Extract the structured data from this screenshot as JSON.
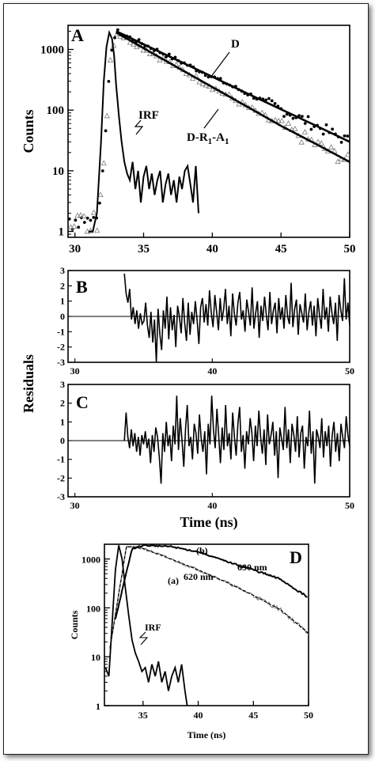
{
  "chart_data": [
    {
      "panel": "A",
      "type": "scatter",
      "ylabel": "Counts",
      "y_scale": "log",
      "xlim": [
        29.5,
        50
      ],
      "ylim": [
        0.8,
        2500
      ],
      "x_ticks": [
        30,
        35,
        40,
        45,
        50
      ],
      "y_ticks": [
        1,
        10,
        100,
        1000
      ],
      "y_tick_labels": [
        "1",
        "10",
        "100",
        "1000"
      ],
      "annotations": [
        "D",
        "IRF",
        "D-R",
        "1",
        "-A",
        "1"
      ],
      "series": [
        {
          "name": "IRF",
          "style": "line",
          "x": [
            31.0,
            31.3,
            31.6,
            31.9,
            32.1,
            32.3,
            32.5,
            32.7,
            32.85,
            33.0,
            33.2,
            33.4,
            33.6,
            33.8,
            34.0,
            34.2,
            34.4,
            34.6,
            34.8,
            35.0,
            35.2,
            35.4,
            35.6,
            35.8,
            36.0,
            36.2,
            36.4,
            36.6,
            36.8,
            37.0,
            37.2,
            37.4,
            37.6,
            37.8,
            38.0,
            38.2,
            38.4,
            38.6,
            38.8,
            39.0
          ],
          "y": [
            1,
            1,
            2,
            30,
            300,
            1100,
            1900,
            1500,
            800,
            260,
            80,
            30,
            14,
            9,
            7,
            14,
            5,
            10,
            3,
            8,
            12,
            5,
            9,
            4,
            7,
            10,
            3,
            6,
            9,
            4,
            7,
            3,
            8,
            5,
            10,
            12,
            6,
            3,
            12,
            2
          ]
        },
        {
          "name": "D",
          "style": "line",
          "x": [
            33.0,
            35,
            37.5,
            40,
            42.5,
            45,
            47.5,
            50
          ],
          "y": [
            2000,
            1220,
            660,
            355,
            190,
            103,
            56,
            30
          ]
        },
        {
          "name": "D-R1-A1",
          "style": "line",
          "x": [
            33.0,
            35,
            37.5,
            40,
            42.5,
            45,
            47.5,
            50
          ],
          "y": [
            1900,
            1050,
            500,
            240,
            115,
            55,
            28,
            14
          ]
        }
      ]
    },
    {
      "panel": "B",
      "type": "line",
      "xlim": [
        29.5,
        50
      ],
      "ylim": [
        -3,
        3
      ],
      "x_ticks": [
        30,
        40,
        50
      ],
      "y_ticks": [
        -3,
        -2,
        -1,
        0,
        1,
        2,
        3
      ],
      "series": [
        {
          "name": "",
          "x_start": 33.6,
          "x_end": 50,
          "values": [
            2.8,
            1.5,
            0.9,
            1.8,
            -0.2,
            0.6,
            -0.5,
            0.4,
            -0.8,
            0.2,
            -0.5,
            -0.3,
            0.9,
            -0.6,
            -1.4,
            0.3,
            -1.7,
            -0.2,
            -3.0,
            0.5,
            -1.2,
            -2.2,
            0.4,
            -0.8,
            1.3,
            -1.5,
            0.6,
            -0.9,
            0.1,
            -2.0,
            0.7,
            0.0,
            -1.1,
            1.2,
            -0.4,
            -1.6,
            0.9,
            -1.2,
            0.3,
            -0.5,
            1.0,
            -0.2,
            -1.8,
            0.6,
            1.2,
            -0.4,
            0.8,
            -0.6,
            1.7,
            0.2,
            -0.7,
            1.4,
            0.3,
            -0.9,
            1.2,
            -0.3,
            0.5,
            1.8,
            -0.5,
            0.7,
            -1.3,
            1.5,
            0.2,
            -0.6,
            0.9,
            1.6,
            -0.2,
            0.4,
            -1.0,
            1.1,
            0.3,
            -0.6,
            1.9,
            -0.8,
            0.2,
            1.0,
            -1.4,
            0.7,
            -0.3,
            1.3,
            0.1,
            -0.9,
            1.6,
            -0.5,
            0.4,
            0.9,
            -1.1,
            1.2,
            -0.2,
            0.6,
            -0.8,
            1.4,
            0.0,
            -0.5,
            2.2,
            -0.7,
            0.5,
            1.1,
            -1.2,
            0.8,
            0.2,
            -0.4,
            1.5,
            -0.9,
            0.3,
            1.0,
            -0.6,
            0.7,
            -1.3,
            1.2,
            0.1,
            -0.8,
            1.8,
            -0.2,
            0.6,
            -1.0,
            1.3,
            0.2,
            -0.5,
            0.9,
            -1.6,
            1.4,
            0.4,
            -0.3,
            2.5,
            -0.2,
            0.9,
            -0.6
          ]
        }
      ]
    },
    {
      "panel": "C",
      "type": "line",
      "xlabel": "Time (ns)",
      "xlim": [
        29.5,
        50
      ],
      "ylim": [
        -3,
        3
      ],
      "x_ticks": [
        30,
        40,
        50
      ],
      "y_ticks": [
        -3,
        -2,
        -1,
        0,
        1,
        2,
        3
      ],
      "series": [
        {
          "name": "",
          "x_start": 33.6,
          "x_end": 50,
          "values": [
            0.0,
            1.5,
            0.2,
            -0.4,
            0.6,
            -0.3,
            0.4,
            -0.6,
            0.2,
            -0.8,
            0.3,
            -0.2,
            0.5,
            -0.4,
            0.1,
            -1.2,
            0.3,
            -0.6,
            0.7,
            0.2,
            -0.9,
            -2.3,
            0.4,
            -0.6,
            1.0,
            -0.3,
            0.3,
            -1.1,
            0.8,
            -0.2,
            2.4,
            -0.5,
            1.2,
            0.0,
            -1.4,
            0.6,
            1.9,
            -0.3,
            0.2,
            -1.0,
            0.9,
            0.4,
            -0.7,
            1.4,
            0.1,
            -0.6,
            0.5,
            -1.8,
            0.9,
            -0.2,
            2.4,
            0.6,
            -0.4,
            1.7,
            0.3,
            -1.2,
            0.7,
            -0.5,
            1.9,
            -0.3,
            0.4,
            -1.0,
            1.5,
            0.2,
            -0.8,
            0.9,
            1.8,
            -0.6,
            0.3,
            -1.5,
            0.5,
            -0.2,
            1.2,
            0.4,
            -1.1,
            0.8,
            -0.3,
            1.6,
            0.2,
            -0.7,
            0.6,
            -1.3,
            1.4,
            -0.2,
            0.3,
            1.0,
            -0.8,
            0.5,
            -2.0,
            0.7,
            0.1,
            -0.5,
            1.8,
            -0.4,
            0.6,
            -1.2,
            0.9,
            0.3,
            -0.6,
            1.3,
            -0.9,
            0.4,
            0.8,
            -1.5,
            0.2,
            -0.3,
            1.6,
            -0.7,
            0.5,
            -2.3,
            0.6,
            0.2,
            -0.4,
            1.2,
            -0.9,
            0.5,
            -0.3,
            0.8,
            -1.4,
            0.3,
            1.0,
            -0.6,
            0.4,
            -1.1,
            0.9,
            0.2,
            -0.4,
            1.3,
            0.3,
            -0.3
          ]
        }
      ]
    },
    {
      "panel": "D",
      "type": "line",
      "xlabel": "Time (ns)",
      "ylabel": "Counts",
      "y_scale": "log",
      "xlim": [
        31.5,
        50
      ],
      "ylim": [
        1,
        2000
      ],
      "x_ticks": [
        35,
        40,
        45,
        50
      ],
      "y_ticks": [
        1,
        10,
        100,
        1000
      ],
      "y_tick_labels": [
        "1",
        "10",
        "100",
        "1000"
      ],
      "annotations": [
        "(b)",
        "690 nm",
        "(a)",
        "620 nm",
        "IRF"
      ],
      "series": [
        {
          "name": "IRF",
          "style": "line",
          "x": [
            31.6,
            31.9,
            32.2,
            32.5,
            32.8,
            33.1,
            33.4,
            33.7,
            34.0,
            34.3,
            34.6,
            34.9,
            35.2,
            35.5,
            35.8,
            36.1,
            36.4,
            36.7,
            37.0,
            37.3,
            37.6,
            37.9,
            38.2,
            38.5,
            38.8,
            39.0
          ],
          "y": [
            6,
            4,
            50,
            600,
            1900,
            1000,
            250,
            70,
            22,
            12,
            8,
            5,
            6,
            3,
            7,
            4,
            8,
            3,
            5,
            2,
            4,
            6,
            3,
            7,
            2,
            1
          ]
        },
        {
          "name": "(a) 620 nm",
          "style": "line",
          "x": [
            32.0,
            33.5,
            35,
            37.5,
            40,
            42.5,
            45,
            47.5,
            50
          ],
          "y": [
            15,
            1800,
            1650,
            1000,
            600,
            340,
            180,
            90,
            30
          ]
        },
        {
          "name": "(b) 690 nm",
          "style": "line",
          "x": [
            32.5,
            34,
            35,
            37.5,
            40,
            42.5,
            45,
            47.5,
            50
          ],
          "y": [
            60,
            1600,
            1900,
            1800,
            1400,
            900,
            600,
            380,
            160
          ]
        }
      ]
    }
  ],
  "shared": {
    "residuals_ylabel": "Residuals"
  },
  "colors": {
    "ink": "#000000",
    "open_marker": "#7a7a7a",
    "trace_a": "#8a8a8a"
  }
}
